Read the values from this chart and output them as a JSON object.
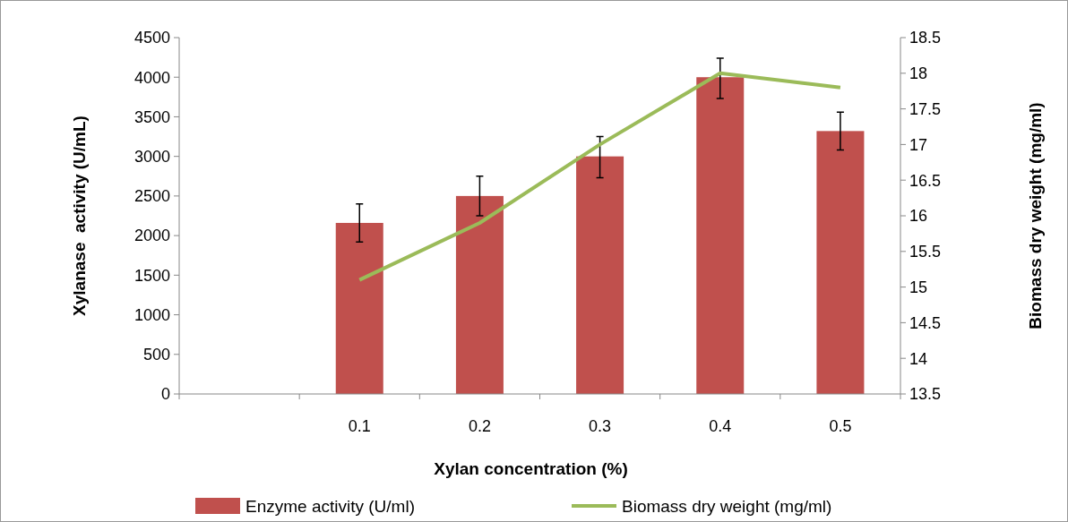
{
  "chart_data": {
    "type": "bar",
    "xlabel": "Xylan concentration (%)",
    "ylabel": "Xylanase  activity (U/mL)",
    "y2label": "Biomass dry weight (mg/ml)",
    "categories": [
      null,
      "0.1",
      "0.2",
      "0.3",
      "0.4",
      "0.5"
    ],
    "series": [
      {
        "name": "Enzyme activity (U/ml)",
        "color": "#c0504d",
        "values": [
          null,
          2160,
          2500,
          3000,
          4000,
          3320
        ],
        "errors": [
          null,
          [
            1920,
            2400
          ],
          [
            2250,
            2750
          ],
          [
            2730,
            3250
          ],
          [
            3730,
            4240
          ],
          [
            3080,
            3560
          ]
        ]
      },
      {
        "name": "Biomass dry weight (mg/ml)",
        "type": "line",
        "axis": "y2",
        "color": "#9bbb59",
        "values": [
          null,
          15.1,
          15.9,
          17.0,
          18.0,
          17.8
        ]
      }
    ],
    "ylim": [
      0,
      4500
    ],
    "yticks": [
      0,
      500,
      1000,
      1500,
      2000,
      2500,
      3000,
      3500,
      4000,
      4500
    ],
    "y2lim": [
      13.5,
      18.5
    ],
    "y2ticks": [
      13.5,
      14,
      14.5,
      15,
      15.5,
      16,
      16.5,
      17,
      17.5,
      18,
      18.5
    ],
    "legend": "bottom",
    "marker": "none",
    "line_style": "solid"
  }
}
